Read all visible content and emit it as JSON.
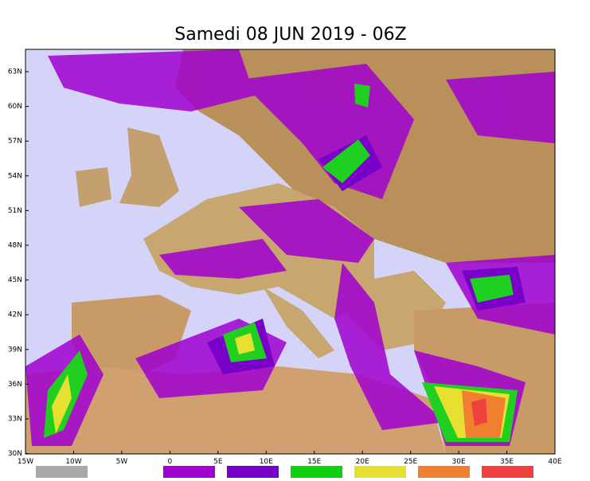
{
  "header": {
    "title": "Samedi 08 JUN 2019 - 06Z"
  },
  "map": {
    "lat_labels": [
      "63N",
      "60N",
      "57N",
      "54N",
      "51N",
      "48N",
      "45N",
      "42N",
      "39N",
      "36N",
      "33N",
      "30N"
    ],
    "lon_labels": [
      "15W",
      "10W",
      "5W",
      "0",
      "5E",
      "10E",
      "15E",
      "20E",
      "25E",
      "30E",
      "35E",
      "40E"
    ]
  }
}
